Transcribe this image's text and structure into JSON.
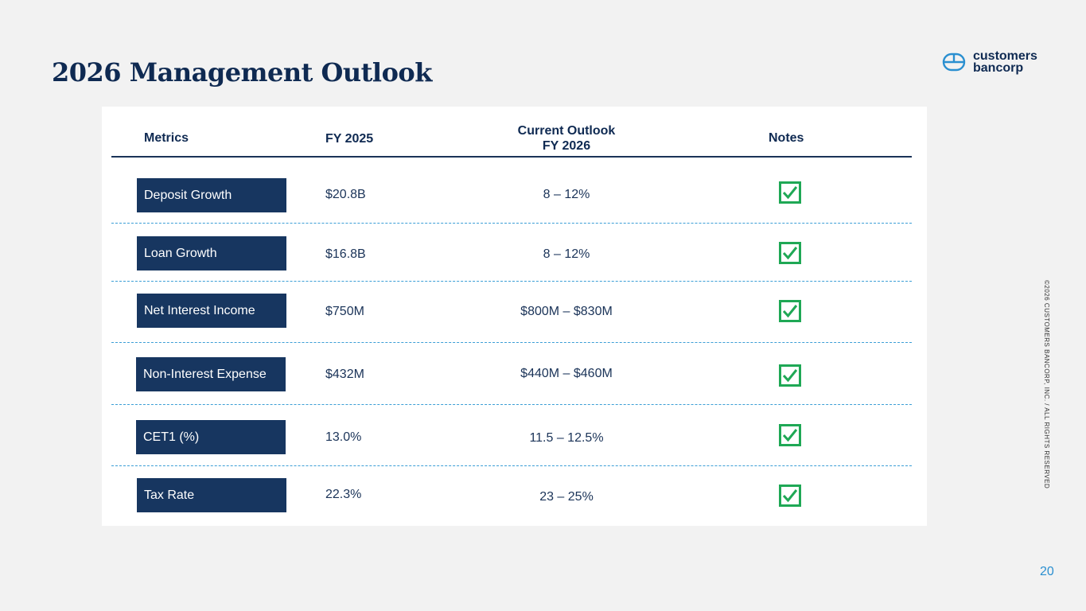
{
  "page": {
    "title": "2026 Management Outlook",
    "page_number": "20",
    "copyright": "©2026 CUSTOMERS BANCORP, INC. / ALL RIGHTS RESERVED"
  },
  "logo": {
    "line1": "customers",
    "line2": "bancorp",
    "icon": "bank-logo-icon"
  },
  "table": {
    "headers": {
      "metrics": "Metrics",
      "fy2025": "FY 2025",
      "outlook_line1": "Current Outlook",
      "outlook_line2": "FY 2026",
      "notes": "Notes"
    },
    "rows": [
      {
        "metric": "Deposit Growth",
        "fy2025": "$20.8B",
        "outlook": "8 – 12%",
        "note_icon": "checkmark-icon"
      },
      {
        "metric": "Loan Growth",
        "fy2025": "$16.8B",
        "outlook": "8 – 12%",
        "note_icon": "checkmark-icon"
      },
      {
        "metric": "Net Interest Income",
        "fy2025": "$750M",
        "outlook": "$800M – $830M",
        "note_icon": "checkmark-icon"
      },
      {
        "metric": "Non-Interest Expense",
        "fy2025": "$432M",
        "outlook": "$440M – $460M",
        "note_icon": "checkmark-icon"
      },
      {
        "metric": "CET1 (%)",
        "fy2025": "13.0%",
        "outlook": "11.5 – 12.5%",
        "note_icon": "checkmark-icon"
      },
      {
        "metric": "Tax Rate",
        "fy2025": "22.3%",
        "outlook": "23 – 25%",
        "note_icon": "checkmark-icon"
      }
    ]
  },
  "colors": {
    "navy": "#173660",
    "check_green": "#1fa855",
    "rule_blue": "#3b9ed6",
    "page_number": "#2a8fd0"
  }
}
